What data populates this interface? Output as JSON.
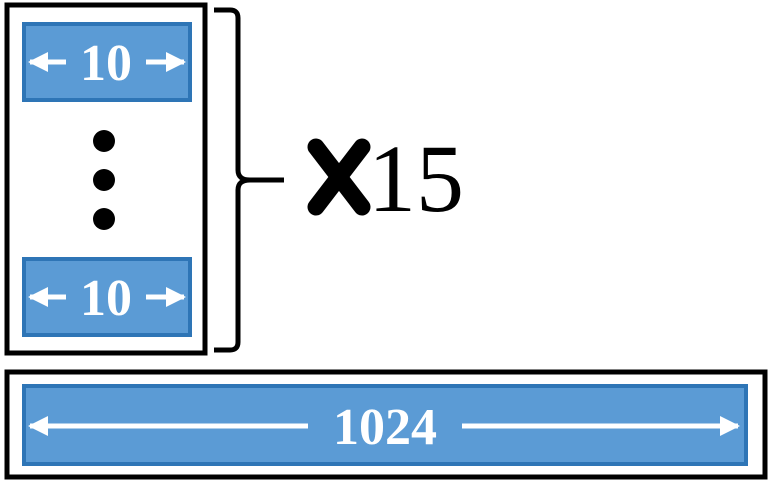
{
  "colors": {
    "box_fill": "#5b9bd5",
    "box_border": "#2e75b6",
    "outline": "#000000",
    "label": "#ffffff"
  },
  "group": {
    "top_block": {
      "label": "10",
      "icon": "double-arrow-icon"
    },
    "ellipsis_icon": "vertical-ellipsis-icon",
    "bottom_block": {
      "label": "10",
      "icon": "double-arrow-icon"
    },
    "bracket_icon": "right-brace-icon",
    "multiplier_icon": "multiply-icon",
    "multiplier": "15"
  },
  "wide_block": {
    "label": "1024",
    "icon": "double-arrow-icon"
  }
}
